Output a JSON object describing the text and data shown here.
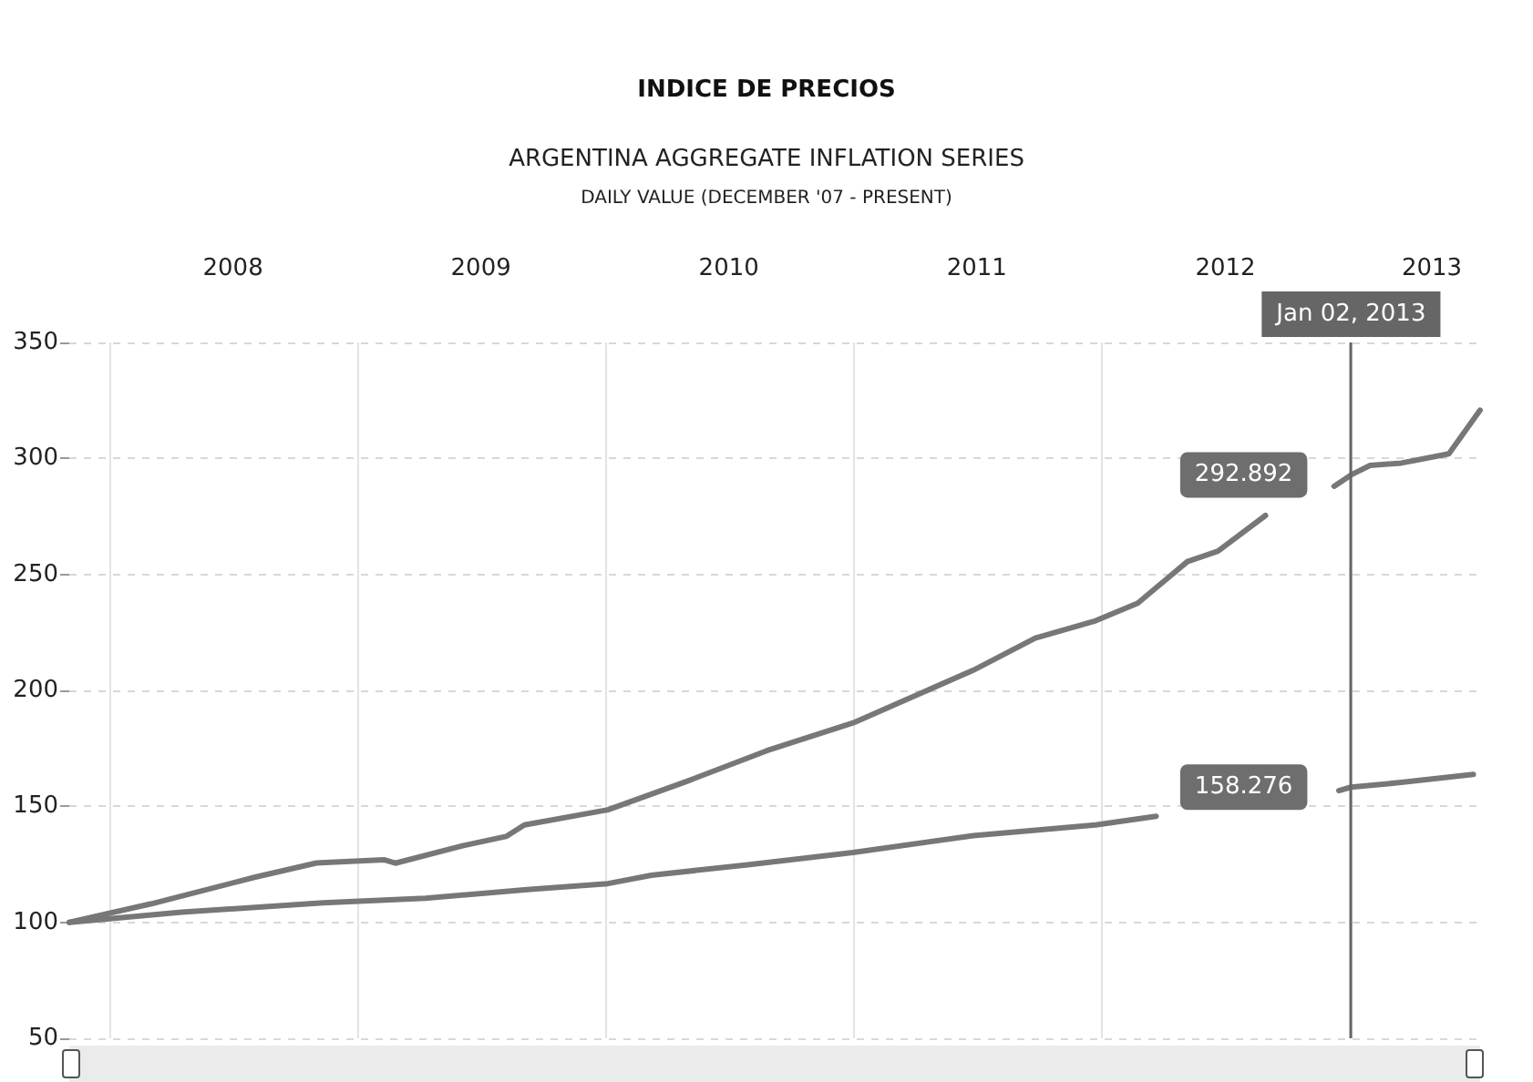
{
  "chart_data": {
    "type": "line",
    "title": "INDICE DE PRECIOS",
    "subtitle": "ARGENTINA AGGREGATE INFLATION SERIES",
    "annotations": [
      "DAILY VALUE (DECEMBER '07 - PRESENT)",
      {
        "text": "292.892",
        "x": "2013-01-02",
        "y": 292.892
      },
      {
        "text": "158.276",
        "x": "2013-01-02",
        "y": 158.276
      }
    ],
    "series": [
      {
        "color": "#777777",
        "x": [
          "2007-11-03",
          "2008-03-03",
          "2008-08-03",
          "2008-11-01",
          "2009-02-08",
          "2009-02-25",
          "2009-06-04",
          "2009-08-07",
          "2009-09-03",
          "2010-01-04",
          "2010-05-02",
          "2010-08-26",
          "2010-12-31",
          "2011-06-26",
          "2011-09-25",
          "2011-12-23",
          "2012-02-23",
          "2012-05-06",
          "2012-06-20",
          "2012-08-29",
          "2012-10-15",
          "2012-12-08",
          "2013-01-02",
          "2013-01-30",
          "2013-03-17",
          "2013-05-26",
          "2013-07-11"
        ],
        "values": [
          100,
          108,
          119.5,
          125.6,
          127,
          125.5,
          133,
          137,
          142,
          148.5,
          161,
          174,
          186,
          208.7,
          222.5,
          230,
          237.6,
          255.5,
          260,
          275.4,
          null,
          288,
          292.892,
          297,
          298,
          302,
          320.8
        ]
      },
      {
        "color": "#777777",
        "x": [
          "2007-11-03",
          "2008-04-17",
          "2008-11-11",
          "2009-04-10",
          "2009-09-11",
          "2010-01-04",
          "2010-03-09",
          "2010-07-29",
          "2010-12-31",
          "2011-06-26",
          "2011-12-23",
          "2012-03-21",
          "2012-07-15",
          "2012-12-15",
          "2013-01-02",
          "2013-03-17",
          "2013-07-01"
        ],
        "values": [
          100,
          104.4,
          108.4,
          110.4,
          114.2,
          116.7,
          120.3,
          124.8,
          130.1,
          137.4,
          142,
          145.7,
          null,
          156.8,
          158.276,
          160.3,
          163.8
        ]
      }
    ],
    "xlim": [
      "2007-11-03",
      "2013-07-11"
    ],
    "xticks": [
      {
        "value": "2008-01-01",
        "label": null
      },
      {
        "value": "2008-07-01",
        "label": "2008"
      },
      {
        "value": "2009-01-01",
        "label": null
      },
      {
        "value": "2009-07-01",
        "label": "2009"
      },
      {
        "value": "2010-01-01",
        "label": null
      },
      {
        "value": "2010-07-01",
        "label": "2010"
      },
      {
        "value": "2011-01-01",
        "label": null
      },
      {
        "value": "2011-07-01",
        "label": "2011"
      },
      {
        "value": "2012-01-01",
        "label": null
      },
      {
        "value": "2012-07-01",
        "label": "2012"
      },
      {
        "value": "2013-01-01",
        "label": null
      },
      {
        "value": "2013-05-01",
        "label": "2013"
      }
    ],
    "ylim": [
      50,
      350
    ],
    "yticks": [
      50,
      100,
      150,
      200,
      250,
      300,
      350
    ],
    "ref_lines": [
      {
        "axis": "x",
        "value": "2013-01-02",
        "label": "Jan 02, 2013",
        "color": "#666666"
      }
    ],
    "grid": true,
    "marker": "none",
    "line_style": "solid"
  }
}
